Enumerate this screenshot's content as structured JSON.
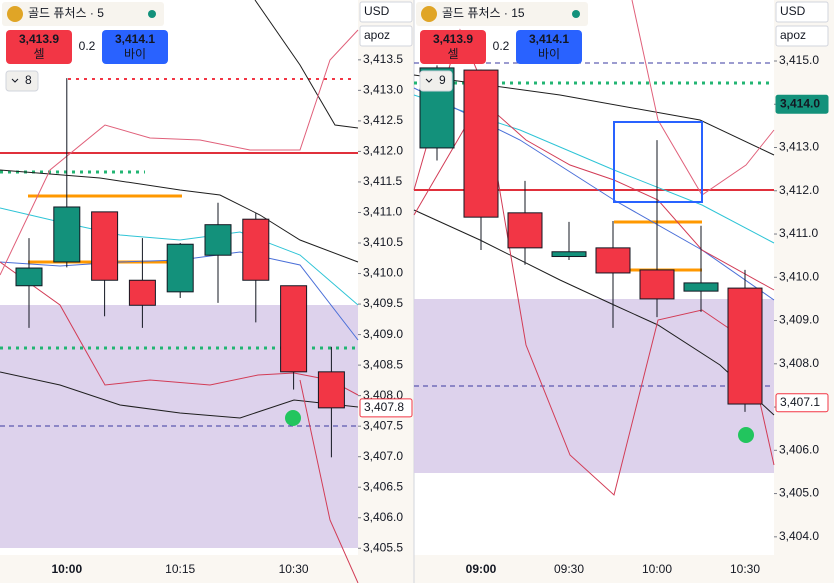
{
  "chart_data": [
    {
      "type": "candlestick",
      "title": "골드 퓨처스 · 5",
      "sell_price": "3,413.9",
      "sell_label": "셀",
      "spread": "0.2",
      "buy_price": "3,414.1",
      "buy_label": "바이",
      "indicator_count": 8,
      "currency": "USD",
      "account": "apoz",
      "categories": [
        null,
        "10:00",
        null,
        null,
        "10:15",
        null,
        null,
        "10:30",
        null
      ],
      "open": [
        3409.8,
        3410.19,
        3411.01,
        3409.89,
        3409.7,
        3410.3,
        3410.89,
        3409.8,
        3408.39
      ],
      "high": [
        3410.58,
        3413.2,
        3411.01,
        3410.58,
        3410.5,
        3411.16,
        3410.99,
        3409.8,
        3408.8
      ],
      "low": [
        3409.11,
        3410.1,
        3409.3,
        3409.11,
        3409.6,
        3409.52,
        3409.2,
        3408.1,
        3406.99
      ],
      "close": [
        3410.09,
        3411.09,
        3409.89,
        3409.48,
        3410.48,
        3410.8,
        3409.89,
        3408.39,
        3407.8
      ],
      "up_color": "#13917b",
      "down_color": "#f23645",
      "ylim": [
        3405.39,
        3414.48
      ],
      "yticks": [
        {
          "value": 3413.5,
          "label": "3,413.5"
        },
        {
          "value": 3413.0,
          "label": "3,413.0"
        },
        {
          "value": 3412.5,
          "label": "3,412.5"
        },
        {
          "value": 3412.0,
          "label": "3,412.0"
        },
        {
          "value": 3411.5,
          "label": "3,411.5"
        },
        {
          "value": 3411.0,
          "label": "3,411.0"
        },
        {
          "value": 3410.5,
          "label": "3,410.5"
        },
        {
          "value": 3410.0,
          "label": "3,410.0"
        },
        {
          "value": 3409.5,
          "label": "3,409.5"
        },
        {
          "value": 3409.0,
          "label": "3,409.0"
        },
        {
          "value": 3408.5,
          "label": "3,408.5"
        },
        {
          "value": 3408.0,
          "label": "3,408.0"
        },
        {
          "value": 3407.5,
          "label": "3,407.5"
        },
        {
          "value": 3407.0,
          "label": "3,407.0"
        },
        {
          "value": 3406.5,
          "label": "3,406.5"
        },
        {
          "value": 3406.0,
          "label": "3,406.0"
        },
        {
          "value": 3405.5,
          "label": "3,405.5"
        }
      ],
      "price_tags": [
        {
          "value": 3407.8,
          "label": "3,407.8",
          "color": "#f23645",
          "filled": false
        }
      ]
    },
    {
      "type": "candlestick",
      "title": "골드 퓨처스 · 15",
      "sell_price": "3,413.9",
      "sell_label": "셀",
      "spread": "0.2",
      "buy_price": "3,414.1",
      "buy_label": "바이",
      "indicator_count": 9,
      "currency": "USD",
      "account": "apoz",
      "categories": [
        null,
        "09:00",
        null,
        "09:30",
        null,
        "10:00",
        null,
        "10:30"
      ],
      "open": [
        3412.99,
        3414.79,
        3411.49,
        3410.48,
        3410.68,
        3410.17,
        3409.68,
        3409.75
      ],
      "high": [
        3414.9,
        3414.8,
        3412.23,
        3411.28,
        3411.3,
        3413.17,
        3411.19,
        3410.17
      ],
      "low": [
        3412.7,
        3410.63,
        3410.29,
        3410.4,
        3408.83,
        3409.08,
        3409.2,
        3406.89
      ],
      "close": [
        3414.84,
        3411.39,
        3410.68,
        3410.59,
        3410.1,
        3409.5,
        3409.87,
        3407.07
      ],
      "up_color": "#13917b",
      "down_color": "#f23645",
      "ylim": [
        3403.58,
        3416.41
      ],
      "yticks": [
        {
          "value": 3415.0,
          "label": "3,415.0"
        },
        {
          "value": 3414.0,
          "label": "3,414.0"
        },
        {
          "value": 3413.0,
          "label": "3,413.0"
        },
        {
          "value": 3412.0,
          "label": "3,412.0"
        },
        {
          "value": 3411.0,
          "label": "3,411.0"
        },
        {
          "value": 3410.0,
          "label": "3,410.0"
        },
        {
          "value": 3409.0,
          "label": "3,409.0"
        },
        {
          "value": 3408.0,
          "label": "3,408.0"
        },
        {
          "value": 3407.0,
          "label": "3,407.0"
        },
        {
          "value": 3406.0,
          "label": "3,406.0"
        },
        {
          "value": 3405.0,
          "label": "3,405.0"
        },
        {
          "value": 3404.0,
          "label": "3,404.0"
        }
      ],
      "price_tags": [
        {
          "value": 3414.0,
          "label": "3,414.0",
          "color": "#13917b",
          "filled": true
        },
        {
          "value": 3407.1,
          "label": "3,407.1",
          "color": "#f23645",
          "filled": false
        }
      ]
    }
  ]
}
